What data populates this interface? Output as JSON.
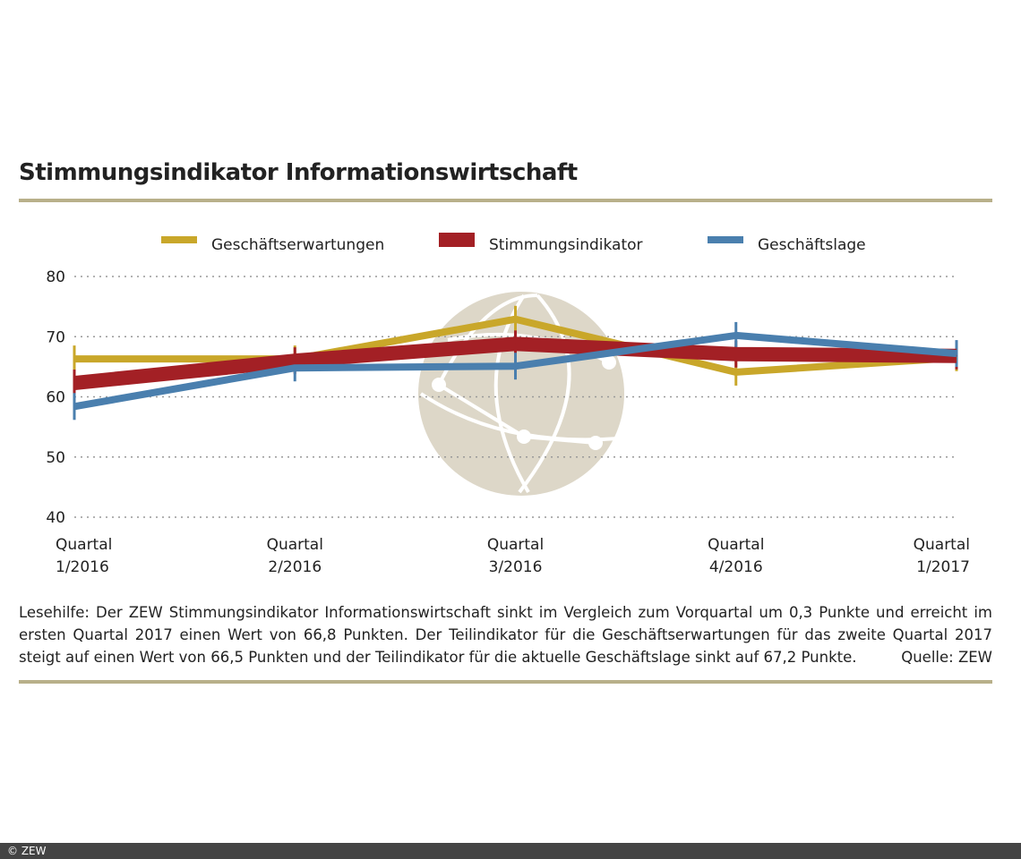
{
  "chart_data": {
    "type": "line",
    "title": "Stimmungsindikator Informationswirtschaft",
    "categories": [
      "Quartal 1/2016",
      "Quartal 2/2016",
      "Quartal 3/2016",
      "Quartal 4/2016",
      "Quartal 1/2017"
    ],
    "ylim": [
      40,
      80
    ],
    "yticks": [
      "40",
      "50",
      "60",
      "70",
      "80"
    ],
    "grid": true,
    "legend_position": "top",
    "series": [
      {
        "name": "Geschäftserwartungen",
        "color": "#c9a72a",
        "values": [
          66.3,
          66.3,
          72.9,
          64.1,
          66.5
        ]
      },
      {
        "name": "Stimmungsindikator",
        "color": "#a32025",
        "values": [
          62.3,
          66.0,
          68.8,
          67.1,
          66.8
        ]
      },
      {
        "name": "Geschäftslage",
        "color": "#4a7fae",
        "values": [
          58.4,
          64.8,
          65.1,
          70.2,
          67.2
        ]
      }
    ]
  },
  "note": "Lesehilfe: Der ZEW Stimmungsindikator Informationswirtschaft sinkt im Vergleich zum Vorquartal um 0,3 Punkte und erreicht im ersten Quartal 2017 einen Wert von 66,8 Punkten. Der Teilindikator für die Geschäftserwartungen für das zweite Quartal 2017 steigt auf einen Wert von 66,5 Punkten und der Teilindikator für die aktuelle Geschäftslage sinkt auf 67,2 Punkte.",
  "source": "Quelle: ZEW",
  "footer": "© ZEW"
}
